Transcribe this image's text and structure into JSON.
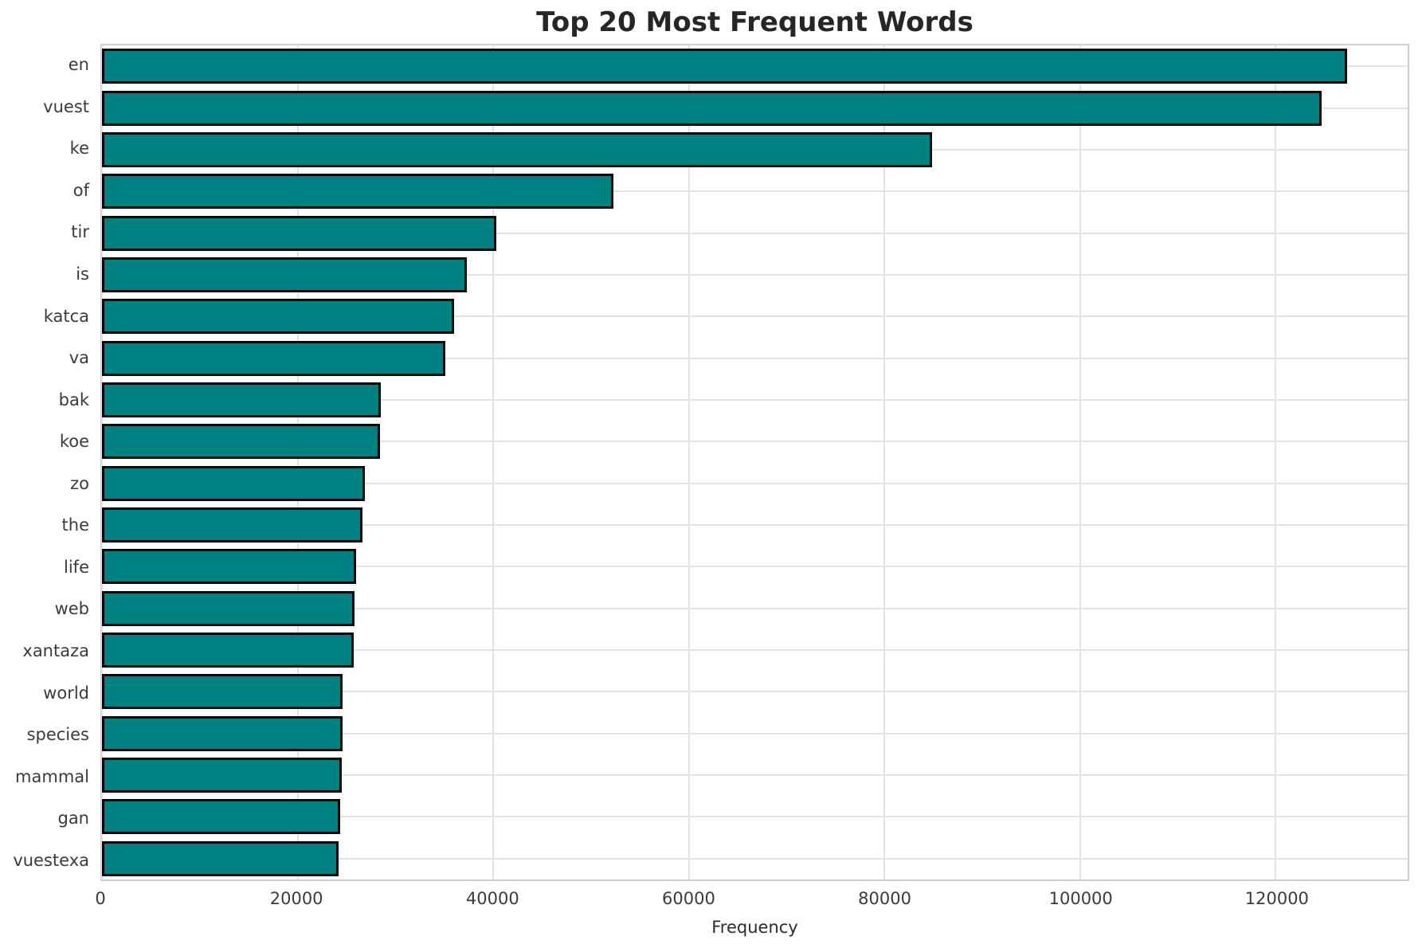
{
  "chart_data": {
    "type": "bar",
    "orientation": "horizontal",
    "title": "Top 20 Most Frequent Words",
    "xlabel": "Frequency",
    "ylabel": "",
    "categories": [
      "en",
      "vuest",
      "ke",
      "of",
      "tir",
      "is",
      "katca",
      "va",
      "bak",
      "koe",
      "zo",
      "the",
      "life",
      "web",
      "xantaza",
      "world",
      "species",
      "mammal",
      "gan",
      "vuestexa"
    ],
    "values": [
      127300,
      124700,
      84900,
      52300,
      40350,
      37300,
      36000,
      35100,
      28520,
      28450,
      26880,
      26650,
      25990,
      25800,
      25750,
      24630,
      24570,
      24520,
      24370,
      24180
    ],
    "xlim": [
      0,
      133500
    ],
    "xticks": [
      0,
      20000,
      40000,
      60000,
      80000,
      100000,
      120000
    ],
    "xtick_labels": [
      "0",
      "20000",
      "40000",
      "60000",
      "80000",
      "100000",
      "120000"
    ],
    "grid": true,
    "legend": "none",
    "colors": {
      "bar_fill": "#008080",
      "bar_edge": "#0a0a0a",
      "grid": "#e3e3e3",
      "spine": "#cfcfcf",
      "title_text": "#262626",
      "tick_text": "#3b3b3b",
      "background": "#ffffff"
    }
  }
}
